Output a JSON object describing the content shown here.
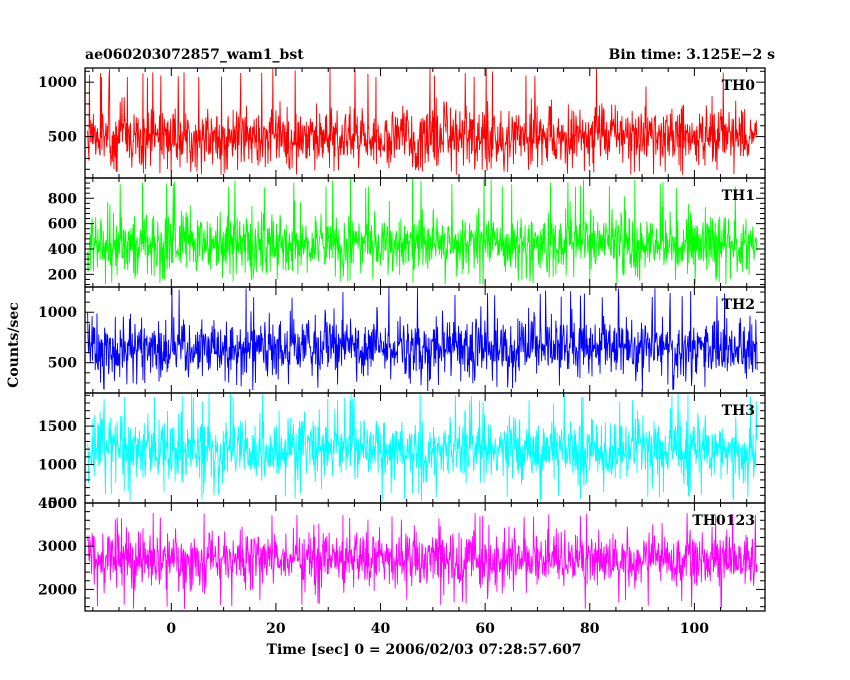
{
  "chart_data": {
    "type": "line",
    "title": "ae060203072857_wam1_bst",
    "subtitle": "Bin time: 3.125E−2 s",
    "xlabel": "Time [sec] 0 = 2006/02/03 07:28:57.607",
    "ylabel": "Counts/sec",
    "xlim": [
      -16.5,
      113.5
    ],
    "x_ticks": [
      0,
      20,
      40,
      60,
      80,
      100
    ],
    "x_tick_labels": [
      "0",
      "20",
      "40",
      "60",
      "80",
      "100"
    ],
    "x_start": -16,
    "x_end": 112,
    "bin_time": 0.03125,
    "grid": false,
    "legend": "none",
    "panels": [
      {
        "name": "TH0",
        "color": "#ff0000",
        "ylim": [
          120,
          1130
        ],
        "y_ticks": [
          500,
          1000
        ],
        "y_tick_labels": [
          "500",
          "1000"
        ],
        "baseline": 500,
        "low": 150,
        "high": 1130
      },
      {
        "name": "TH1",
        "color": "#00ff00",
        "ylim": [
          100,
          960
        ],
        "y_ticks": [
          200,
          400,
          600,
          800
        ],
        "y_tick_labels": [
          "200",
          "400",
          "600",
          "800"
        ],
        "baseline": 440,
        "low": 120,
        "high": 960
      },
      {
        "name": "TH2",
        "color": "#0000ff",
        "ylim": [
          200,
          1250
        ],
        "y_ticks": [
          500,
          1000
        ],
        "y_tick_labels": [
          "500",
          "1000"
        ],
        "baseline": 650,
        "low": 220,
        "high": 1250
      },
      {
        "name": "TH3",
        "color": "#00ffff",
        "ylim": [
          500,
          1930
        ],
        "y_ticks": [
          500,
          1000,
          1500
        ],
        "y_tick_labels": [
          "500",
          "1000",
          "1500"
        ],
        "baseline": 1200,
        "low": 520,
        "high": 1930
      },
      {
        "name": "TH0123",
        "color": "#ff00ff",
        "ylim": [
          1500,
          4000
        ],
        "y_ticks": [
          2000,
          3000,
          4000
        ],
        "y_tick_labels": [
          "2000",
          "3000",
          "4000"
        ],
        "baseline": 2700,
        "low": 1550,
        "high": 3800
      }
    ]
  }
}
